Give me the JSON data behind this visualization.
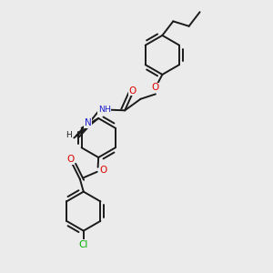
{
  "background_color": "#ebebeb",
  "bond_color": "#1a1a1a",
  "atom_colors": {
    "O": "#e00000",
    "N": "#2020cc",
    "Cl": "#00b000",
    "H": "#1a1a1a",
    "C": "#1a1a1a"
  },
  "figsize": [
    3.0,
    3.0
  ],
  "dpi": 100,
  "lw": 1.4,
  "ring_r": 0.072
}
